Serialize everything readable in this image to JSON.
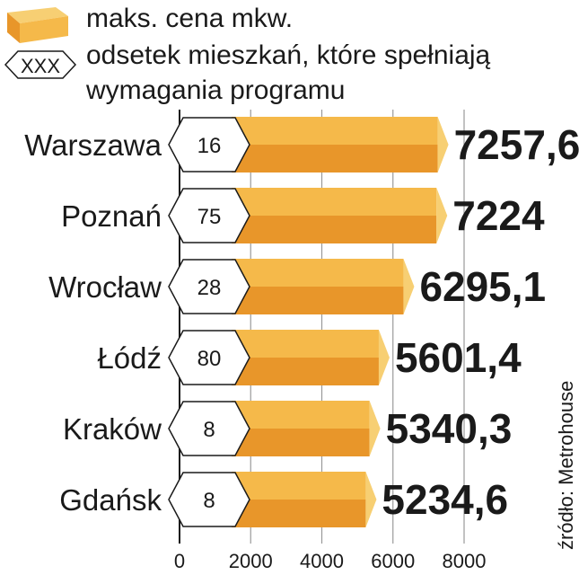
{
  "legend": {
    "box_label": "maks. cena mkw.",
    "hex_symbol": "XXX",
    "hex_label_line1": "odsetek mieszkań, które spełniają",
    "hex_label_line2": "wymagania programu"
  },
  "source": "źródło: Metrohouse",
  "colors": {
    "bar_top": "#f5b94a",
    "bar_bottom": "#e8962a",
    "bar_end": "#f7cf73",
    "grid": "#9a9a9a"
  },
  "chart_data": {
    "type": "bar",
    "orientation": "horizontal",
    "xlim": [
      0,
      8000
    ],
    "x_ticks": [
      "0",
      "2000",
      "4000",
      "6000",
      "8000"
    ],
    "tick_values": [
      0,
      2000,
      4000,
      6000,
      8000
    ],
    "categories": [
      "Warszawa",
      "Poznań",
      "Wrocław",
      "Łódź",
      "Kraków",
      "Gdańsk"
    ],
    "value_labels": [
      "7257,6",
      "7224",
      "6295,1",
      "5601,4",
      "5340,3",
      "5234,6"
    ],
    "values": [
      7257.6,
      7224,
      6295.1,
      5601.4,
      5340.3,
      5234.6
    ],
    "percent_labels": [
      "16",
      "75",
      "28",
      "80",
      "8",
      "8"
    ],
    "percent_values": [
      16,
      75,
      28,
      80,
      8,
      8
    ]
  }
}
